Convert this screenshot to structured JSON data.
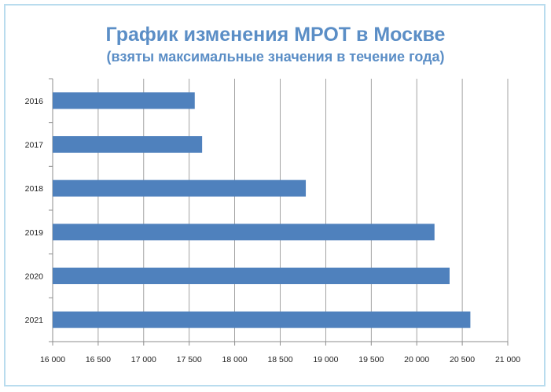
{
  "chart_data": {
    "type": "bar",
    "orientation": "horizontal",
    "title": "График изменения  МРОТ в Москве",
    "subtitle": "(взяты максимальные значения в течение года)",
    "categories": [
      "2016",
      "2017",
      "2018",
      "2019",
      "2020",
      "2021"
    ],
    "values": [
      17561,
      17642,
      18781,
      20195,
      20361,
      20589
    ],
    "xlim": [
      16000,
      21000
    ],
    "xticks": [
      16000,
      16500,
      17000,
      17500,
      18000,
      18500,
      19000,
      19500,
      20000,
      20500,
      21000
    ],
    "xtick_labels": [
      "16 000",
      "16 500",
      "17 000",
      "17 500",
      "18 000",
      "18 500",
      "19 000",
      "19 500",
      "20 000",
      "20 500",
      "21 000"
    ],
    "grid": true,
    "legend": "none",
    "bar_color": "#4f81bd",
    "xlabel": "",
    "ylabel": ""
  }
}
